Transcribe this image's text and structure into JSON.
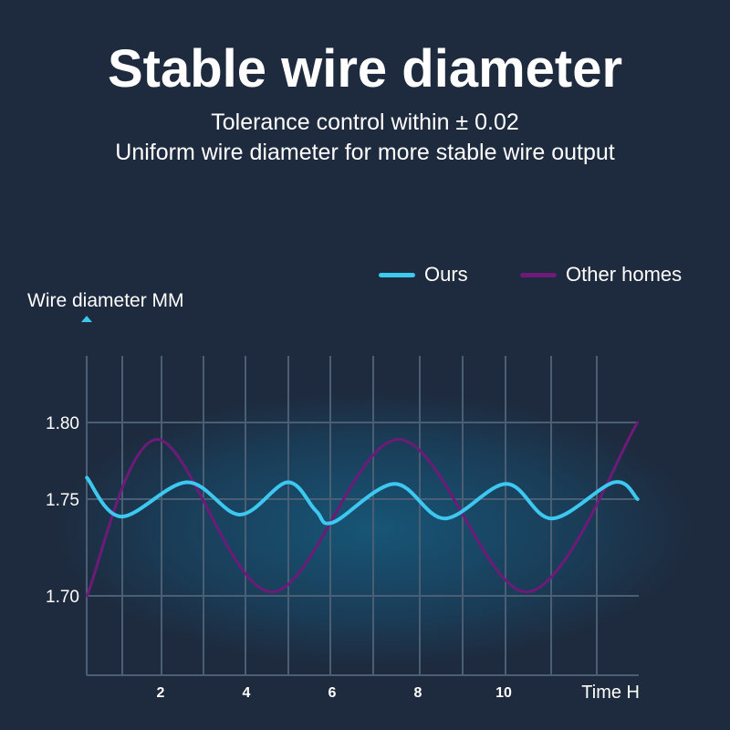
{
  "header": {
    "title": "Stable wire diameter",
    "subtitle_1": "Tolerance control within ± 0.02",
    "subtitle_2": "Uniform wire diameter for more stable wire output"
  },
  "chart_data": {
    "type": "line",
    "xlabel": "Time H",
    "ylabel": "Wire diameter MM",
    "x_ticks": [
      2,
      4,
      6,
      8,
      10
    ],
    "y_ticks": [
      1.7,
      1.75,
      1.8
    ],
    "y_tick_labels": [
      "1.70",
      "1.75",
      "1.80"
    ],
    "grid": true,
    "legend": "top-right",
    "series": [
      {
        "name": "Ours",
        "color": "#3cc8f0",
        "x": [
          0.26,
          1.06,
          2.6,
          3.83,
          4.94,
          5.6,
          6.0,
          7.43,
          8.6,
          10.04,
          11.1,
          12.55,
          13.1
        ],
        "values": [
          1.764,
          1.741,
          1.761,
          1.742,
          1.761,
          1.744,
          1.738,
          1.76,
          1.74,
          1.76,
          1.74,
          1.761,
          1.75
        ]
      },
      {
        "name": "Other homes",
        "color": "#6e1a78",
        "x": [
          0.26,
          1.9,
          4.57,
          7.53,
          10.53,
          13.1
        ],
        "values": [
          1.7,
          1.789,
          1.702,
          1.789,
          1.702,
          1.8
        ]
      }
    ]
  }
}
